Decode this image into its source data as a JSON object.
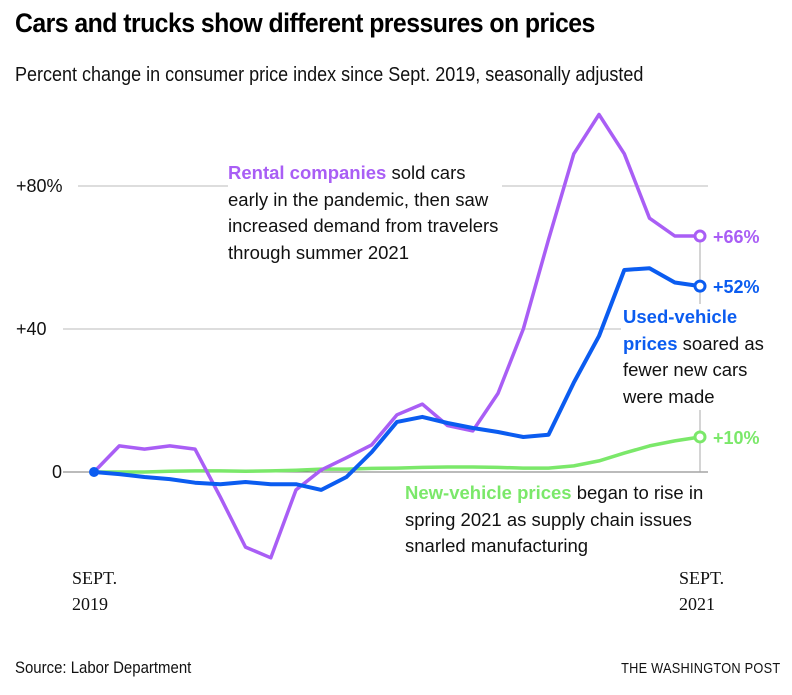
{
  "header": {
    "title": "Cars and trucks show different pressures on prices",
    "subtitle": "Percent change in consumer price index since Sept. 2019, seasonally adjusted"
  },
  "footer": {
    "source": "Source: Labor Department",
    "credit": "THE WASHINGTON POST"
  },
  "annotations": {
    "rental": {
      "bold": "Rental companies",
      "rest_line1": " sold cars",
      "line2": "early in the pandemic, then saw",
      "line3": "increased demand from travelers",
      "line4": "through summer 2021"
    },
    "used": {
      "bold_line1": "Used-vehicle",
      "bold_line2": "prices",
      "rest_line2": " soared as",
      "line3": "fewer new cars",
      "line4": "were made"
    },
    "new": {
      "bold": "New-vehicle prices",
      "rest_line1": " began to rise in",
      "line2": "spring 2021 as supply chain issues",
      "line3": "snarled manufacturing"
    }
  },
  "chart_data": {
    "type": "line",
    "title": "Cars and trucks show different pressures on prices",
    "subtitle": "Percent change in consumer price index since Sept. 2019, seasonally adjusted",
    "xlabel": "",
    "ylabel": "Percent change",
    "x_start_label": [
      "SEPT.",
      "2019"
    ],
    "x_end_label": [
      "SEPT.",
      "2021"
    ],
    "x": [
      "2019-09",
      "2019-10",
      "2019-11",
      "2019-12",
      "2020-01",
      "2020-02",
      "2020-03",
      "2020-04",
      "2020-05",
      "2020-06",
      "2020-07",
      "2020-08",
      "2020-09",
      "2020-10",
      "2020-11",
      "2020-12",
      "2021-01",
      "2021-02",
      "2021-03",
      "2021-04",
      "2021-05",
      "2021-06",
      "2021-07",
      "2021-08",
      "2021-09"
    ],
    "ylim": [
      -30,
      100
    ],
    "yticks": [
      {
        "value": 80,
        "label": "+80%"
      },
      {
        "value": 40,
        "label": "+40"
      },
      {
        "value": 0,
        "label": "0"
      }
    ],
    "grid": true,
    "legend": "none (direct labels)",
    "series": [
      {
        "name": "Rental companies",
        "color": "#a95ef5",
        "end_label": "+66%",
        "values": [
          0,
          7.3,
          6.4,
          7.3,
          6.4,
          -7,
          -21,
          -24,
          -5,
          0.6,
          4,
          7.6,
          16,
          19,
          13,
          11.5,
          22,
          40,
          65,
          89,
          100,
          89,
          71,
          66,
          66
        ]
      },
      {
        "name": "Used-vehicle prices",
        "color": "#0b5cf0",
        "end_label": "+52%",
        "values": [
          0,
          -0.6,
          -1.4,
          -2,
          -3,
          -3.4,
          -2.8,
          -3.4,
          -3.4,
          -5,
          -1.4,
          5.6,
          14,
          15.4,
          13.7,
          12.3,
          11.2,
          9.8,
          10.4,
          25,
          38,
          56.5,
          57,
          53,
          52
        ]
      },
      {
        "name": "New-vehicle prices",
        "color": "#7be86a",
        "end_label": "+10%",
        "values": [
          0,
          0,
          0,
          0.2,
          0.3,
          0.3,
          0.2,
          0.3,
          0.5,
          0.8,
          0.8,
          1,
          1.1,
          1.3,
          1.4,
          1.4,
          1.3,
          1.1,
          1.1,
          1.7,
          3.1,
          5.3,
          7.3,
          8.7,
          9.8
        ]
      }
    ]
  }
}
